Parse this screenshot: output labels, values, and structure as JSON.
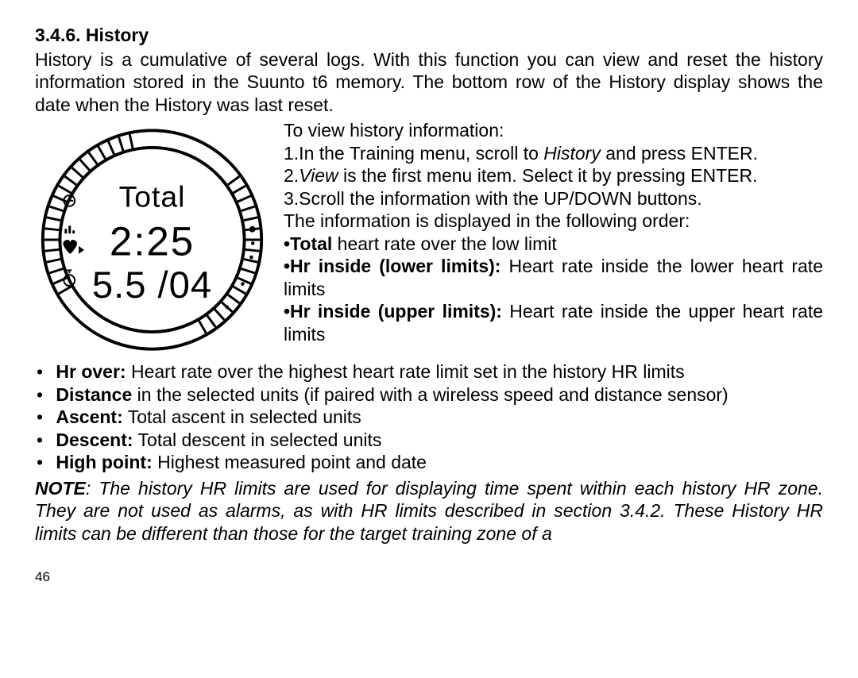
{
  "heading": "3.4.6.  History",
  "intro": "History is a cumulative of several logs. With this function you can view and reset the history information stored in the Suunto t6 memory. The bottom row of the History display shows the date when the History was last reset.",
  "watch": {
    "line1": "Total",
    "line2": "2:25",
    "line3": "5.5 /04",
    "bezel_color": "#000000",
    "tick_color": "#000000",
    "background": "#ffffff",
    "icon_color": "#000000"
  },
  "intro2": "To view history information:",
  "steps": {
    "s1_prefix": "1.In the Training menu, scroll to ",
    "s1_italic": "History",
    "s1_suffix": " and press ENTER.",
    "s2_prefix": "2.",
    "s2_italic": "View",
    "s2_suffix": " is the first menu item. Select it by pressing ENTER.",
    "s3": "3.Scroll the information with the UP/DOWN buttons.",
    "order_line": "The information is displayed in the following order:",
    "inl1_bold": "•Total",
    "inl1_rest": " heart rate over the low limit",
    "inl2_bold": "•Hr inside (lower limits):",
    "inl2_rest": " Heart rate inside the lower heart rate limits",
    "inl3_bold": "•Hr inside (upper limits):",
    "inl3_rest": " Heart rate inside the upper heart rate limits"
  },
  "bullets": {
    "b1_bold": "Hr over:",
    "b1_rest": " Heart rate over the highest heart rate limit set in the history HR limits",
    "b2_bold": "Distance",
    "b2_rest": " in the selected units (if paired with a wireless speed and distance sensor)",
    "b3_bold": "Ascent:",
    "b3_rest": " Total ascent in selected units",
    "b4_bold": "Descent:",
    "b4_rest": " Total descent in selected units",
    "b5_bold": "High point:",
    "b5_rest": " Highest measured point and date"
  },
  "note": {
    "label": "NOTE",
    "text": ": The history HR limits are used for displaying time spent within each history HR zone. They are not used as alarms, as with HR limits described in section 3.4.2. These History HR limits can be different than those for the target training zone of a"
  },
  "page_number": "46"
}
